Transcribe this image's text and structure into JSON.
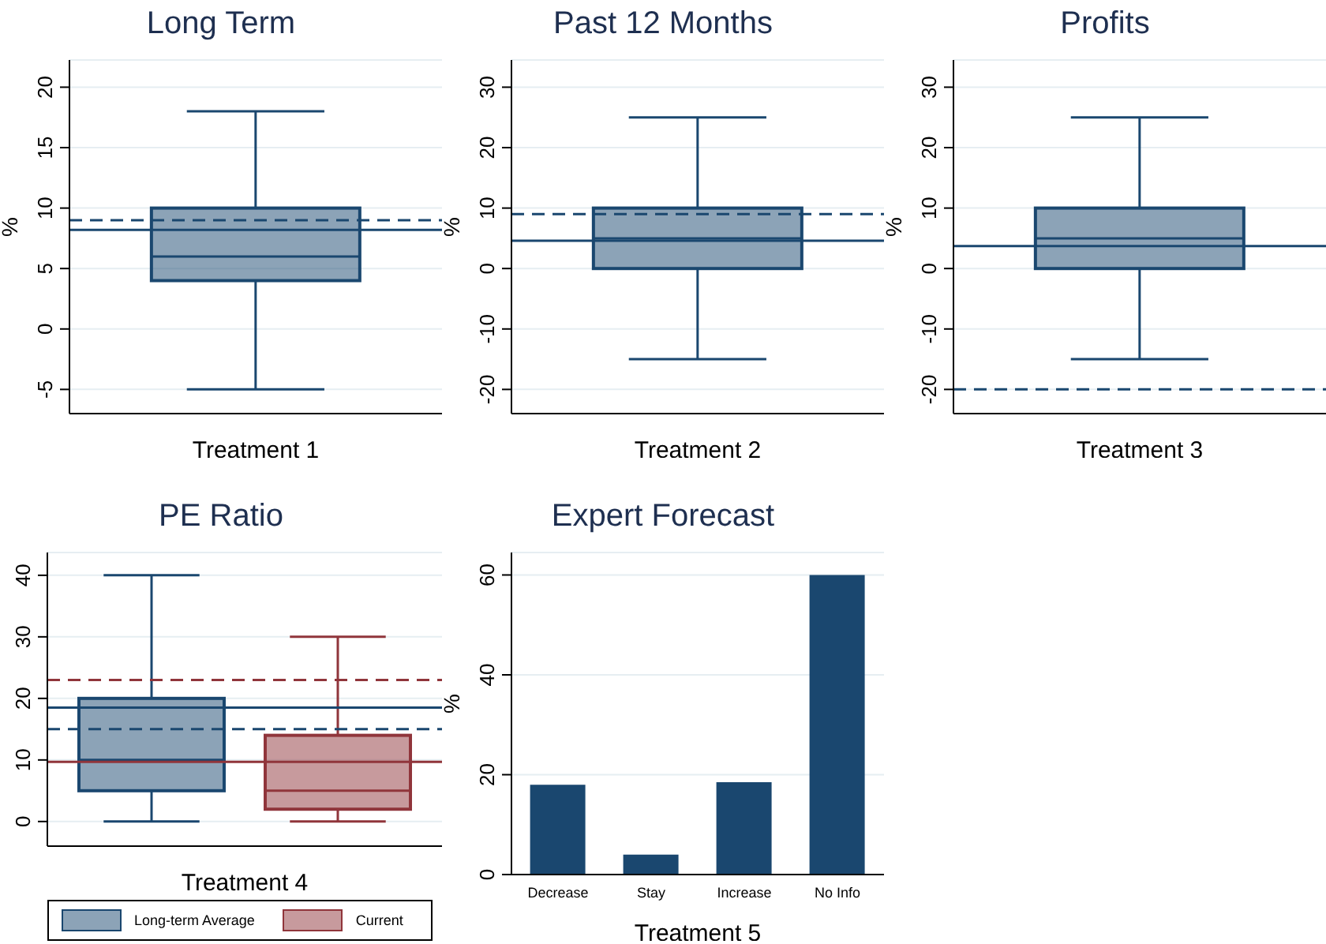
{
  "chart_data": [
    {
      "type": "box",
      "title": "Long Term",
      "xlabel": "Treatment 1",
      "ylabel": "%",
      "categories": [
        null
      ],
      "series": [
        {
          "color": "#1a476f",
          "boxes": [
            {
              "low": -5,
              "q1": 4,
              "median": 6,
              "q3": 10,
              "high": 18
            }
          ]
        }
      ],
      "ylim": [
        -7,
        22.25
      ],
      "yticks": [
        -5,
        0,
        5,
        10,
        15,
        20
      ],
      "grid": "y",
      "ref_lines": [
        {
          "axis": "y",
          "value": 8.2,
          "color": "#1a476f",
          "line_style": "solid"
        },
        {
          "axis": "y",
          "value": 9,
          "color": "#1a476f",
          "line_style": "dashed"
        }
      ]
    },
    {
      "type": "box",
      "title": "Past 12 Months",
      "xlabel": "Treatment 2",
      "ylabel": "%",
      "categories": [
        null
      ],
      "series": [
        {
          "color": "#1a476f",
          "boxes": [
            {
              "low": -15,
              "q1": 0,
              "median": 5,
              "q3": 10,
              "high": 25
            }
          ]
        }
      ],
      "ylim": [
        -24,
        34.5
      ],
      "yticks": [
        -20,
        -10,
        0,
        10,
        20,
        30
      ],
      "grid": "y",
      "ref_lines": [
        {
          "axis": "y",
          "value": 4.6,
          "color": "#1a476f",
          "line_style": "solid"
        },
        {
          "axis": "y",
          "value": 9,
          "color": "#1a476f",
          "line_style": "dashed"
        }
      ]
    },
    {
      "type": "box",
      "title": "Profits",
      "xlabel": "Treatment 3",
      "ylabel": "%",
      "categories": [
        null
      ],
      "series": [
        {
          "color": "#1a476f",
          "boxes": [
            {
              "low": -15,
              "q1": 0,
              "median": 5,
              "q3": 10,
              "high": 25
            }
          ]
        }
      ],
      "ylim": [
        -24,
        34.5
      ],
      "yticks": [
        -20,
        -10,
        0,
        10,
        20,
        30
      ],
      "grid": "y",
      "ref_lines": [
        {
          "axis": "y",
          "value": 3.7,
          "color": "#1a476f",
          "line_style": "solid"
        },
        {
          "axis": "y",
          "value": -20,
          "color": "#1a476f",
          "line_style": "dashed"
        }
      ]
    },
    {
      "type": "box",
      "title": "PE Ratio",
      "xlabel": "Treatment 4",
      "categories": [
        null
      ],
      "series": [
        {
          "name": "Long-term Average",
          "color": "#1a476f",
          "boxes": [
            {
              "low": 0,
              "q1": 5,
              "median": 10,
              "q3": 20,
              "high": 40
            }
          ]
        },
        {
          "name": "Current",
          "color": "#90353b",
          "boxes": [
            {
              "low": 0,
              "q1": 2,
              "median": 5,
              "q3": 14,
              "high": 30
            }
          ]
        }
      ],
      "ylim": [
        -4,
        43.7
      ],
      "yticks": [
        0,
        10,
        20,
        30,
        40
      ],
      "grid": "y",
      "legend": "bottom",
      "ref_lines": [
        {
          "axis": "y",
          "value": 18.5,
          "color": "#1a476f",
          "line_style": "solid"
        },
        {
          "axis": "y",
          "value": 15,
          "color": "#1a476f",
          "line_style": "dashed"
        },
        {
          "axis": "y",
          "value": 9.7,
          "color": "#90353b",
          "line_style": "solid"
        },
        {
          "axis": "y",
          "value": 23,
          "color": "#90353b",
          "line_style": "dashed"
        }
      ]
    },
    {
      "type": "bar",
      "title": "Expert Forecast",
      "xlabel": "Treatment 5",
      "ylabel": "%",
      "categories": [
        "Decrease",
        "Stay",
        "Increase",
        "No Info"
      ],
      "values": [
        18,
        4,
        18.5,
        60
      ],
      "color": "#1a476f",
      "ylim": [
        0,
        64.5
      ],
      "yticks": [
        0,
        20,
        40,
        60
      ],
      "grid": "y"
    }
  ]
}
